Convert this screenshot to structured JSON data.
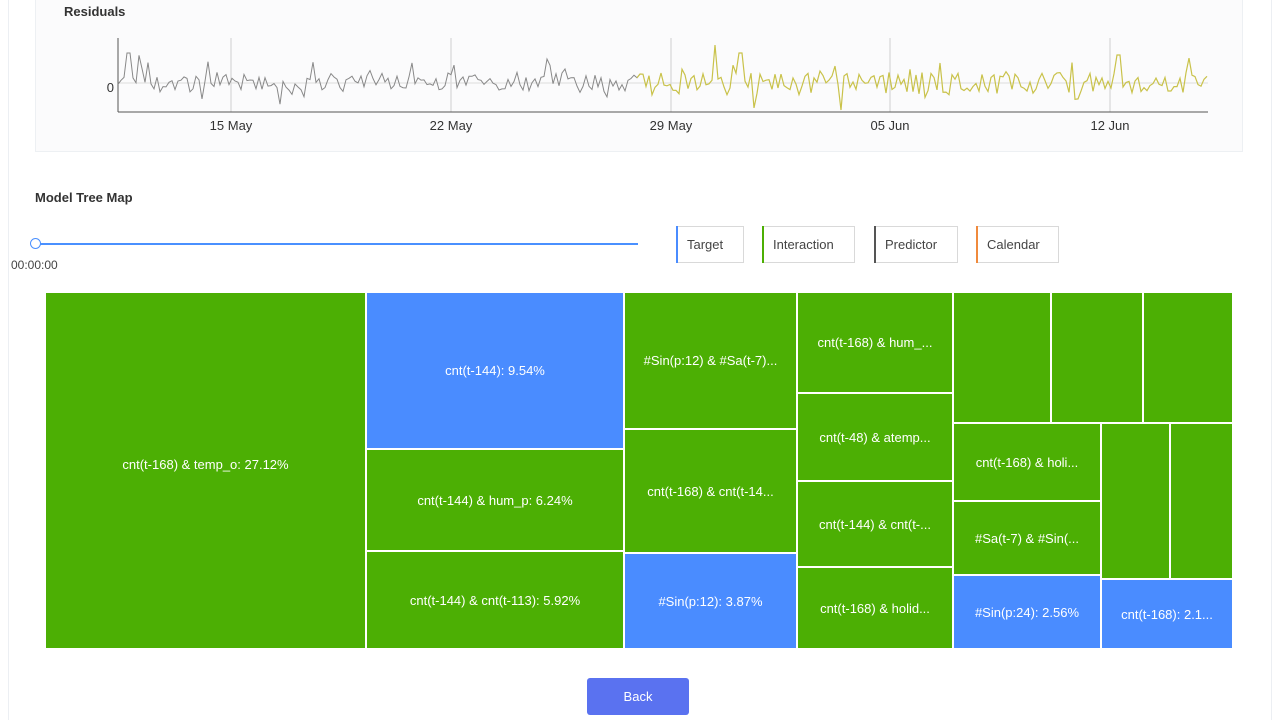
{
  "residuals": {
    "title": "Residuals",
    "zero_label": "0",
    "dates": [
      "15 May",
      "22 May",
      "29 May",
      "05 Jun",
      "12 Jun"
    ],
    "fit_color": "#888888",
    "forecast_color": "#c9c24a"
  },
  "treemap_section": {
    "title": "Model Tree Map",
    "slider_time": "00:00:00"
  },
  "legend": [
    {
      "label": "Target",
      "color": "#4a8cff"
    },
    {
      "label": "Interaction",
      "color": "#4caf04"
    },
    {
      "label": "Predictor",
      "color": "#555555"
    },
    {
      "label": "Calendar",
      "color": "#f08a3c"
    }
  ],
  "tiles": [
    {
      "label": "cnt(t-168) & temp_o: 27.12%",
      "type": "green"
    },
    {
      "label": "cnt(t-144): 9.54%",
      "type": "blue"
    },
    {
      "label": "cnt(t-144) & hum_p: 6.24%",
      "type": "green"
    },
    {
      "label": "cnt(t-144) & cnt(t-113): 5.92%",
      "type": "green"
    },
    {
      "label": "#Sin(p:12) & #Sa(t-7)...",
      "type": "green"
    },
    {
      "label": "cnt(t-168) & cnt(t-14...",
      "type": "green"
    },
    {
      "label": "#Sin(p:12): 3.87%",
      "type": "blue"
    },
    {
      "label": "cnt(t-168) & hum_...",
      "type": "green"
    },
    {
      "label": "cnt(t-48) & atemp...",
      "type": "green"
    },
    {
      "label": "cnt(t-144) & cnt(t-...",
      "type": "green"
    },
    {
      "label": "cnt(t-168) & holid...",
      "type": "green"
    },
    {
      "label": "",
      "type": "green"
    },
    {
      "label": "",
      "type": "green"
    },
    {
      "label": "",
      "type": "green"
    },
    {
      "label": "cnt(t-168) & holi...",
      "type": "green"
    },
    {
      "label": "#Sa(t-7) & #Sin(...",
      "type": "green"
    },
    {
      "label": "#Sin(p:24): 2.56%",
      "type": "blue"
    },
    {
      "label": "",
      "type": "green"
    },
    {
      "label": "",
      "type": "green"
    },
    {
      "label": "cnt(t-168): 2.1...",
      "type": "blue"
    }
  ],
  "actions": {
    "back_label": "Back"
  }
}
